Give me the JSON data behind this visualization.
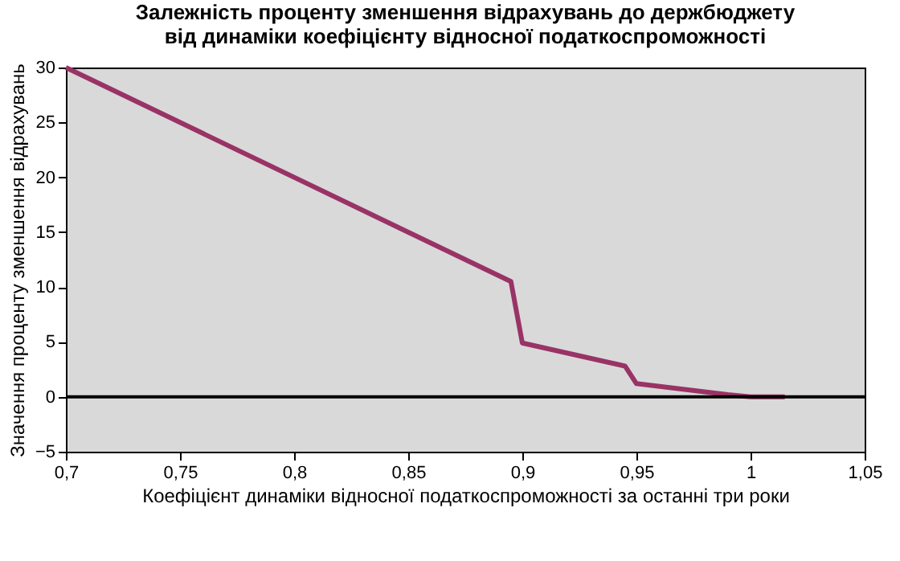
{
  "chart_data": {
    "type": "line",
    "title": [
      "Залежність проценту зменшення відрахувань до держбюджету",
      "від динаміки коефіцієнту відносної податкоспроможності"
    ],
    "xlabel": "Коефіцієнт динаміки відносної податкоспроможності за останні три роки",
    "ylabel": "Значення проценту зменшення відрахувань",
    "x": [
      0.7,
      0.895,
      0.9,
      0.945,
      0.95,
      0.99,
      1.0,
      1.015
    ],
    "series": [
      {
        "color": "#993366",
        "values": [
          30,
          10.5,
          4.9,
          2.8,
          1.2,
          0.2,
          0,
          0
        ]
      }
    ],
    "xlim": [
      0.7,
      1.05
    ],
    "xticks": [
      {
        "value": 0.7,
        "label": "0,7"
      },
      {
        "value": 0.75,
        "label": "0,75"
      },
      {
        "value": 0.8,
        "label": "0,8"
      },
      {
        "value": 0.85,
        "label": "0,85"
      },
      {
        "value": 0.9,
        "label": "0,9"
      },
      {
        "value": 0.95,
        "label": "0,95"
      },
      {
        "value": 1,
        "label": "1"
      },
      {
        "value": 1.05,
        "label": "1,05"
      }
    ],
    "ylim": [
      -5,
      30
    ],
    "yticks": [
      -5,
      0,
      5,
      10,
      15,
      20,
      25,
      30
    ],
    "ref_lines": [
      {
        "axis": "y",
        "value": 0,
        "color": "#000000"
      }
    ],
    "grid": false,
    "line_style": "solid",
    "marker": "none"
  }
}
